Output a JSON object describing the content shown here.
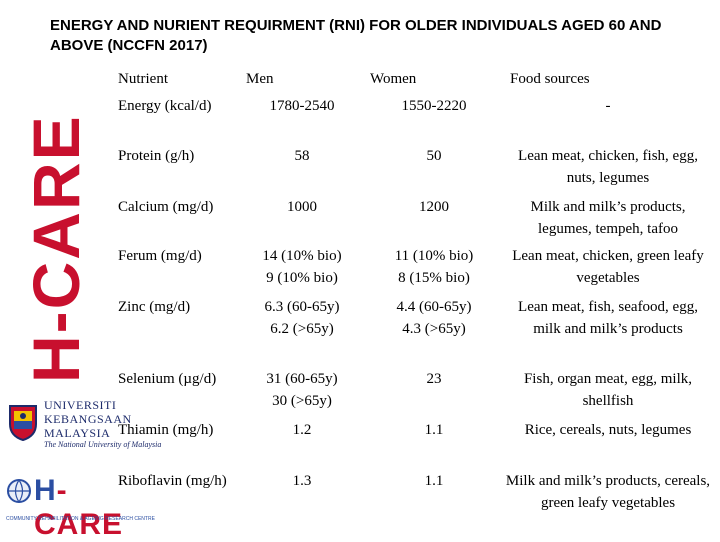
{
  "title": "ENERGY AND NURIENT REQUIRMENT (RNI) FOR OLDER INDIVIDUALS AGED 60 AND ABOVE (NCCFN 2017)",
  "brand": {
    "vertical_text": "H-CARE",
    "university_line1": "UNIVERSITI",
    "university_line2": "KEBANGSAAN",
    "university_line3": "MALAYSIA",
    "university_tagline": "The National University of Malaysia",
    "hcare_h": "H",
    "hcare_rest": "CARE",
    "hcare_sub": "COMMUNITY REHABILITATION & AGEING RESEARCH CENTRE",
    "red": "#c8102e",
    "blue": "#2b4ea2"
  },
  "table": {
    "headers": [
      "Nutrient",
      "Men",
      "Women",
      "Food sources"
    ],
    "rows": [
      {
        "nutrient": "Energy (kcal/d)",
        "men": "1780-2540",
        "women": "1550-2220",
        "food": "-"
      },
      {
        "nutrient": "Protein (g/h)",
        "men": "58",
        "women": "50",
        "food": "Lean meat, chicken, fish, egg, nuts, legumes"
      },
      {
        "nutrient": "Calcium (mg/d)",
        "men": "1000",
        "women": "1200",
        "food": "Milk and milk’s products, legumes, tempeh, tafoo"
      },
      {
        "nutrient": "Ferum (mg/d)",
        "men": "14 (10% bio)\n9 (10% bio)",
        "women": "11 (10% bio)\n8 (15% bio)",
        "food": "Lean meat, chicken, green leafy vegetables"
      },
      {
        "nutrient": "Zinc (mg/d)",
        "men": "6.3 (60-65y)\n6.2 (>65y)",
        "women": "4.4 (60-65y)\n4.3 (>65y)",
        "food": "Lean meat, fish, seafood, egg, milk and milk’s products"
      },
      {
        "nutrient": "Selenium (µg/d)",
        "men": "31 (60-65y)\n30 (>65y)",
        "women": "23",
        "food": "Fish, organ meat, egg, milk, shellfish"
      },
      {
        "nutrient": "Thiamin (mg/h)",
        "men": "1.2",
        "women": "1.1",
        "food": "Rice, cereals, nuts, legumes"
      },
      {
        "nutrient": "Riboflavin (mg/h)",
        "men": "1.3",
        "women": "1.1",
        "food": "Milk and milk’s products, cereals, green leafy vegetables"
      }
    ]
  }
}
